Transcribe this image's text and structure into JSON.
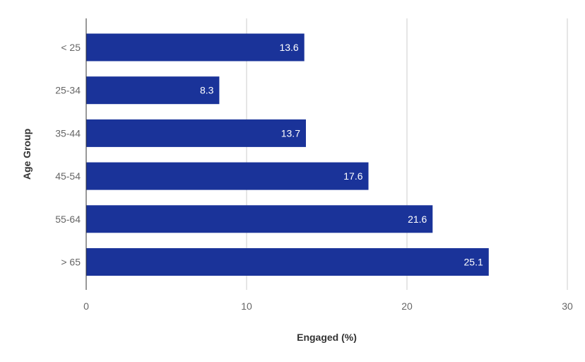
{
  "chart_data": {
    "type": "bar",
    "orientation": "horizontal",
    "categories": [
      "< 25",
      "25-34",
      "35-44",
      "45-54",
      "55-64",
      "> 65"
    ],
    "values": [
      13.6,
      8.3,
      13.7,
      17.6,
      21.6,
      25.1
    ],
    "data_labels": [
      "13.6",
      "8.3",
      "13.7",
      "17.6",
      "21.6",
      "25.1"
    ],
    "xlabel": "Engaged (%)",
    "ylabel": "Age Group",
    "xlim": [
      0,
      30
    ],
    "x_ticks": [
      0,
      10,
      20,
      30
    ],
    "x_tick_labels": [
      "0",
      "10",
      "20",
      "30"
    ],
    "grid": true,
    "legend": "none",
    "colors": {
      "bar": "#1a3399",
      "grid": "#cccccc",
      "axis": "#333333"
    }
  }
}
